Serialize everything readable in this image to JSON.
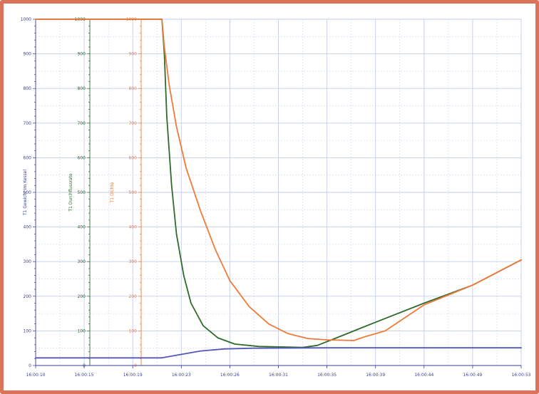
{
  "colors": {
    "frame": "#d9735a",
    "grid": "#c5cdea",
    "axis_blue": "#3b3f9a",
    "green": "#2f6b2a",
    "orange": "#f07a3a",
    "blue": "#5457b8"
  },
  "chart_data": {
    "type": "line",
    "grid": true,
    "x_ticks": [
      "16:00:10",
      "16:00:15",
      "16:00:19",
      "16:00:23",
      "16:00:26",
      "16:00:31",
      "16:00:35",
      "16:00:39",
      "16:00:44",
      "16:00:49",
      "16:00:53"
    ],
    "axes": [
      {
        "title": "T1 Gewicht im Kessel",
        "color": "#3b3f9a",
        "ticks": [
          "0",
          "100",
          "200",
          "300",
          "400",
          "500",
          "600",
          "700",
          "800",
          "900",
          "1000"
        ]
      },
      {
        "title": "T1 Durchflussrate",
        "color": "#2f6b2a",
        "ticks": [
          "0",
          "100",
          "200",
          "300",
          "400",
          "500",
          "600",
          "700",
          "800",
          "900",
          "1000"
        ]
      },
      {
        "title": "T1 Dichte",
        "color": "#f07a3a",
        "ticks": [
          "0",
          "100",
          "200",
          "300",
          "400",
          "500",
          "600",
          "700",
          "800",
          "900",
          "1000"
        ]
      }
    ],
    "ylim": [
      0,
      1000
    ],
    "series": [
      {
        "color": "#2f6b2a",
        "points": [
          [
            0,
            1000
          ],
          [
            2.6,
            1000
          ],
          [
            2.65,
            900
          ],
          [
            2.7,
            720
          ],
          [
            2.8,
            520
          ],
          [
            2.9,
            380
          ],
          [
            3.05,
            260
          ],
          [
            3.2,
            180
          ],
          [
            3.45,
            115
          ],
          [
            3.75,
            80
          ],
          [
            4.1,
            62
          ],
          [
            4.6,
            55
          ],
          [
            5.2,
            53
          ],
          [
            5.5,
            52
          ],
          [
            5.8,
            58
          ],
          [
            6.2,
            80
          ],
          [
            7,
            125
          ],
          [
            8,
            180
          ],
          [
            9,
            232
          ],
          [
            10,
            305
          ]
        ]
      },
      {
        "color": "#f07a3a",
        "points": [
          [
            0,
            1000
          ],
          [
            2.6,
            1000
          ],
          [
            2.65,
            920
          ],
          [
            2.75,
            810
          ],
          [
            2.9,
            690
          ],
          [
            3.1,
            570
          ],
          [
            3.4,
            445
          ],
          [
            3.7,
            335
          ],
          [
            4.0,
            245
          ],
          [
            4.4,
            170
          ],
          [
            4.8,
            120
          ],
          [
            5.2,
            92
          ],
          [
            5.6,
            78
          ],
          [
            6.0,
            74
          ],
          [
            6.3,
            73
          ],
          [
            6.55,
            72
          ],
          [
            6.8,
            84
          ],
          [
            7.2,
            100
          ],
          [
            8,
            175
          ],
          [
            9,
            232
          ],
          [
            10,
            305
          ]
        ]
      },
      {
        "color": "#5457b8",
        "points": [
          [
            0,
            22
          ],
          [
            2.6,
            22
          ],
          [
            3.0,
            32
          ],
          [
            3.4,
            42
          ],
          [
            3.9,
            48
          ],
          [
            4.5,
            50
          ],
          [
            6,
            51
          ],
          [
            8,
            51
          ],
          [
            10,
            51
          ]
        ]
      }
    ]
  }
}
